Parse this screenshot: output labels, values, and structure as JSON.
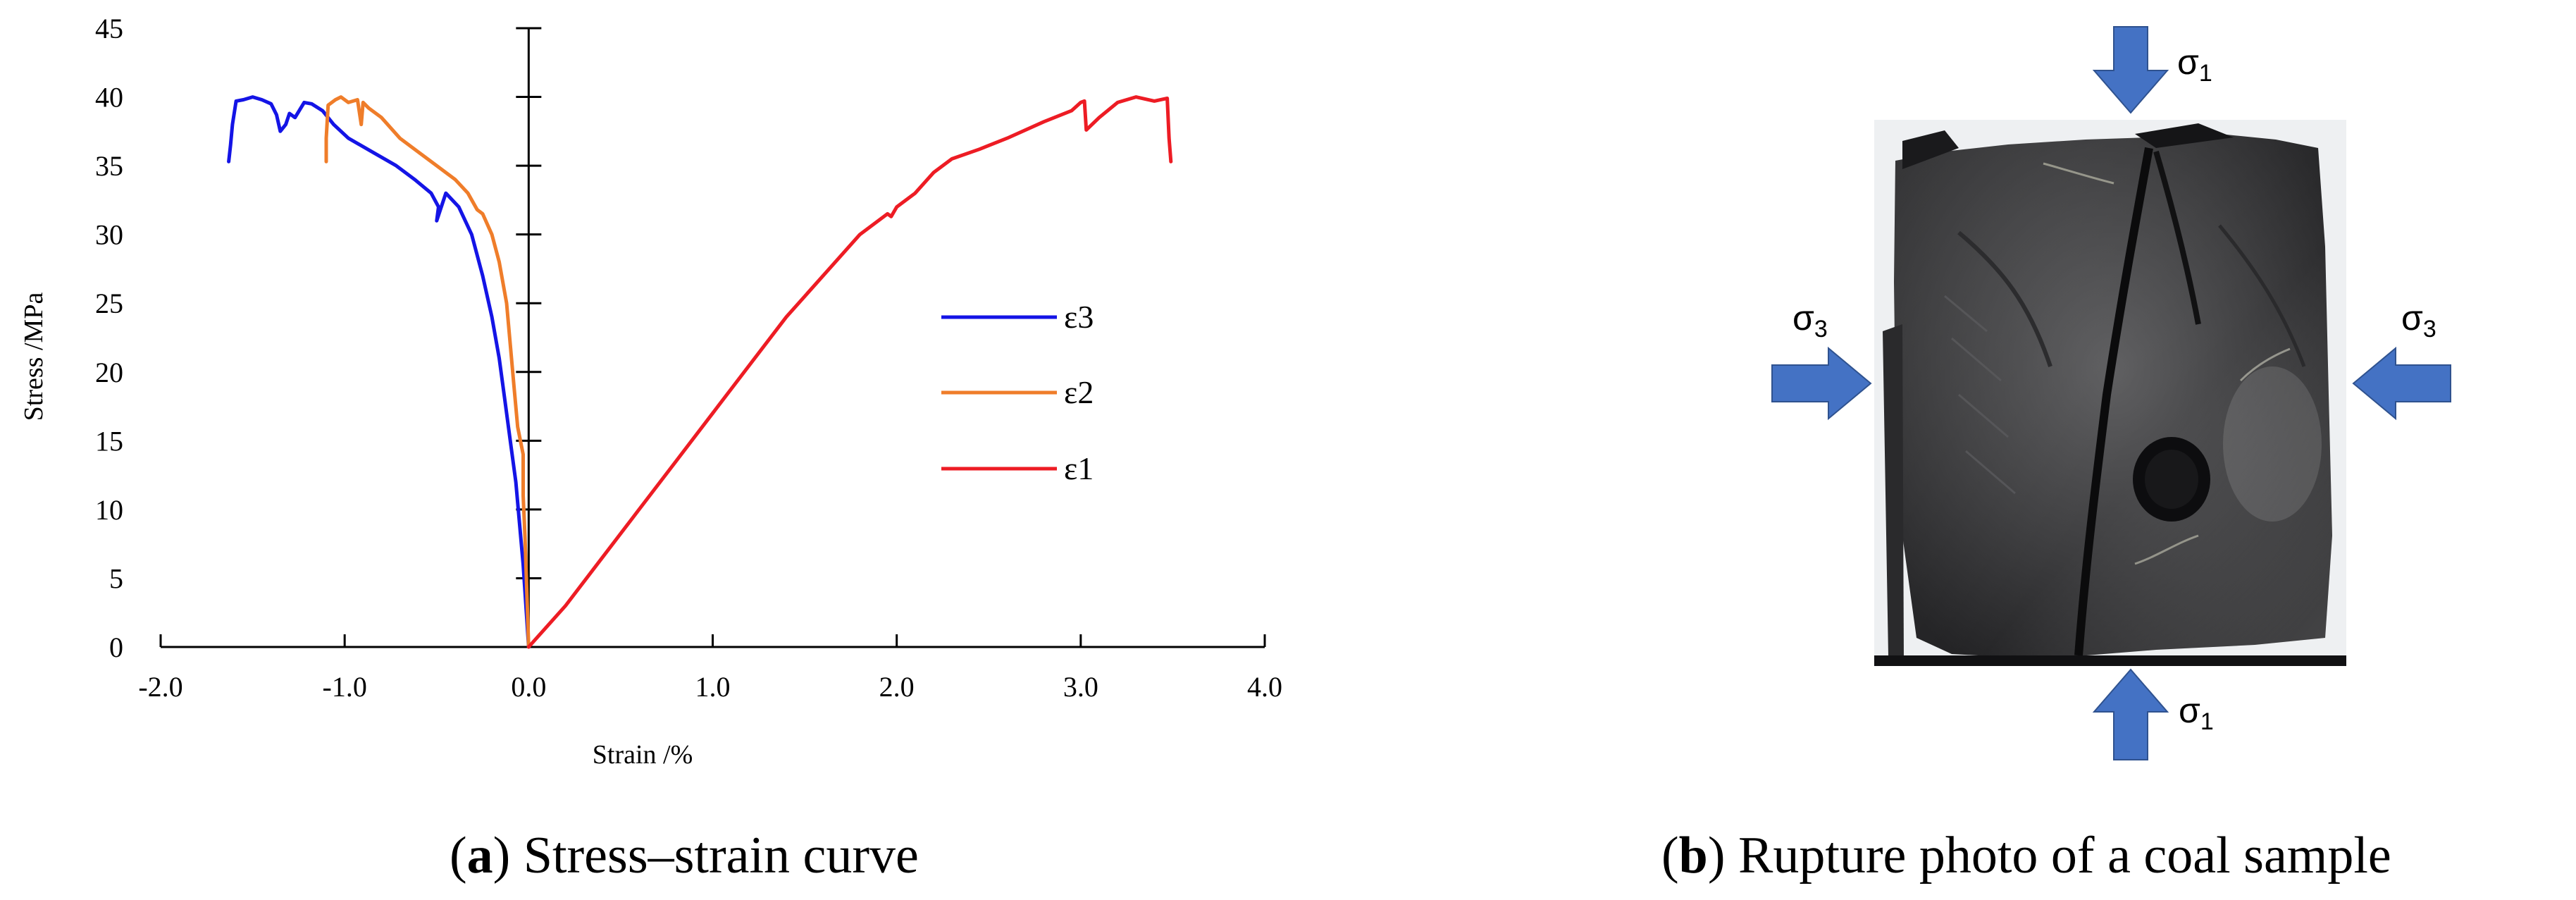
{
  "chart_data": {
    "type": "line",
    "xlabel": "Strain /%",
    "ylabel": "Stress /MPa",
    "xlim": [
      -2.0,
      4.0
    ],
    "ylim": [
      0,
      45
    ],
    "x_ticks": [
      "-2.0",
      "-1.0",
      "0.0",
      "1.0",
      "2.0",
      "3.0",
      "4.0"
    ],
    "y_ticks": [
      "0",
      "5",
      "10",
      "15",
      "20",
      "25",
      "30",
      "35",
      "40",
      "45"
    ],
    "grid": false,
    "legend_position": "right",
    "series": [
      {
        "name": "ε3",
        "color": "#1414e6",
        "points": [
          [
            0.0,
            0
          ],
          [
            -0.01,
            2
          ],
          [
            -0.02,
            4
          ],
          [
            -0.03,
            6
          ],
          [
            -0.05,
            9
          ],
          [
            -0.07,
            12
          ],
          [
            -0.1,
            15
          ],
          [
            -0.13,
            18
          ],
          [
            -0.16,
            21
          ],
          [
            -0.2,
            24
          ],
          [
            -0.25,
            27
          ],
          [
            -0.31,
            30
          ],
          [
            -0.38,
            32
          ],
          [
            -0.45,
            33
          ],
          [
            -0.5,
            31
          ],
          [
            -0.49,
            32
          ],
          [
            -0.53,
            33
          ],
          [
            -0.62,
            34
          ],
          [
            -0.72,
            35
          ],
          [
            -0.85,
            36
          ],
          [
            -0.98,
            37
          ],
          [
            -1.06,
            38
          ],
          [
            -1.12,
            39
          ],
          [
            -1.18,
            39.5
          ],
          [
            -1.22,
            39.6
          ],
          [
            -1.27,
            38.5
          ],
          [
            -1.3,
            38.8
          ],
          [
            -1.32,
            38
          ],
          [
            -1.35,
            37.5
          ],
          [
            -1.37,
            38.7
          ],
          [
            -1.4,
            39.5
          ],
          [
            -1.45,
            39.8
          ],
          [
            -1.5,
            40
          ],
          [
            -1.55,
            39.8
          ],
          [
            -1.59,
            39.7
          ],
          [
            -1.61,
            38
          ],
          [
            -1.62,
            36.5
          ],
          [
            -1.63,
            35.3
          ]
        ]
      },
      {
        "name": "ε2",
        "color": "#ef7d2a",
        "points": [
          [
            0.0,
            0
          ],
          [
            -0.01,
            4
          ],
          [
            -0.02,
            8
          ],
          [
            -0.03,
            11
          ],
          [
            -0.03,
            14
          ],
          [
            -0.06,
            16
          ],
          [
            -0.08,
            19
          ],
          [
            -0.1,
            22
          ],
          [
            -0.12,
            25
          ],
          [
            -0.16,
            28
          ],
          [
            -0.2,
            30
          ],
          [
            -0.25,
            31.5
          ],
          [
            -0.28,
            31.8
          ],
          [
            -0.33,
            33
          ],
          [
            -0.4,
            34
          ],
          [
            -0.5,
            35
          ],
          [
            -0.6,
            36
          ],
          [
            -0.7,
            37
          ],
          [
            -0.8,
            38.5
          ],
          [
            -0.87,
            39.2
          ],
          [
            -0.9,
            39.6
          ],
          [
            -0.91,
            38
          ],
          [
            -0.93,
            39.8
          ],
          [
            -0.98,
            39.6
          ],
          [
            -1.02,
            40
          ],
          [
            -1.05,
            39.8
          ],
          [
            -1.09,
            39.4
          ],
          [
            -1.1,
            37
          ],
          [
            -1.1,
            35.3
          ]
        ]
      },
      {
        "name": "ε1",
        "color": "#ed1c24",
        "points": [
          [
            0.0,
            0
          ],
          [
            0.1,
            1.5
          ],
          [
            0.2,
            3
          ],
          [
            0.4,
            6.5
          ],
          [
            0.6,
            10
          ],
          [
            0.8,
            13.5
          ],
          [
            1.0,
            17
          ],
          [
            1.2,
            20.5
          ],
          [
            1.4,
            24
          ],
          [
            1.6,
            27
          ],
          [
            1.8,
            30
          ],
          [
            1.95,
            31.5
          ],
          [
            1.97,
            31.3
          ],
          [
            2.0,
            32
          ],
          [
            2.1,
            33
          ],
          [
            2.2,
            34.5
          ],
          [
            2.3,
            35.5
          ],
          [
            2.45,
            36.2
          ],
          [
            2.6,
            37
          ],
          [
            2.8,
            38.2
          ],
          [
            2.95,
            39
          ],
          [
            3.0,
            39.6
          ],
          [
            3.02,
            39.7
          ],
          [
            3.03,
            37.6
          ],
          [
            3.1,
            38.5
          ],
          [
            3.2,
            39.6
          ],
          [
            3.3,
            40
          ],
          [
            3.4,
            39.7
          ],
          [
            3.47,
            39.9
          ],
          [
            3.48,
            37
          ],
          [
            3.49,
            35.3
          ]
        ]
      }
    ]
  },
  "legend": {
    "items": [
      "ε3",
      "ε2",
      "ε1"
    ]
  },
  "captions": {
    "a_label": "a",
    "a_text": " Stress–strain curve",
    "b_label": "b",
    "b_text": " Rupture photo of a coal sample"
  },
  "photo": {
    "arrow_color": "#4472c4",
    "sigma1_top": "σ",
    "sigma1_top_sub": "1",
    "sigma1_bottom": "σ",
    "sigma1_bottom_sub": "1",
    "sigma3_left": "σ",
    "sigma3_left_sub": "3",
    "sigma3_right": "σ",
    "sigma3_right_sub": "3"
  }
}
